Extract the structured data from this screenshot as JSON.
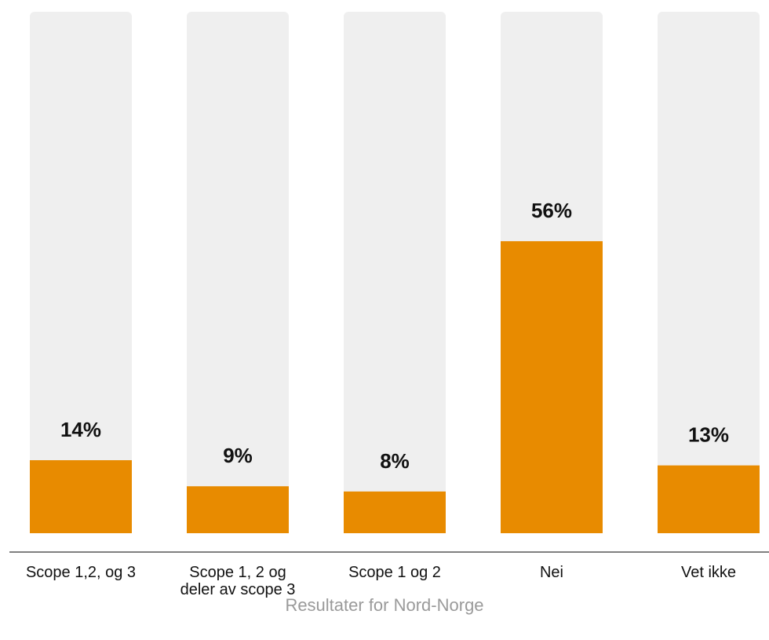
{
  "chart_data": {
    "type": "bar",
    "categories": [
      [
        "Scope 1,2, og 3"
      ],
      [
        "Scope 1, 2 og",
        "deler av scope 3"
      ],
      [
        "Scope 1 og 2"
      ],
      [
        "Nei"
      ],
      [
        "Vet ikke"
      ]
    ],
    "values": [
      14,
      9,
      8,
      56,
      13
    ],
    "value_labels": [
      "14%",
      "9%",
      "8%",
      "56%",
      "13%"
    ],
    "ylim": [
      0,
      100
    ],
    "colors": {
      "bar": "#E88B00",
      "track": "#EFEFEF",
      "axis": "#808080",
      "value_text": "#111111",
      "category_text": "#111111"
    },
    "grid": false,
    "legend": "none"
  },
  "caption": "Resultater for Nord-Norge"
}
